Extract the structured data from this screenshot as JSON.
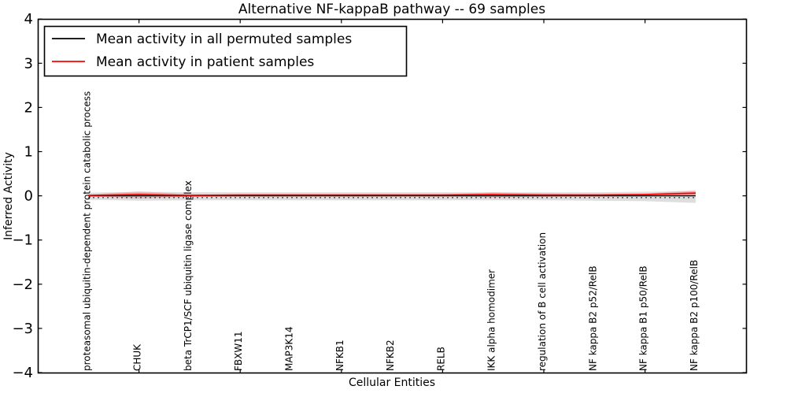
{
  "chart_data": {
    "type": "line",
    "title": "Alternative NF-kappaB pathway -- 69 samples",
    "xlabel": "Cellular Entities",
    "ylabel": "Inferred Activity",
    "ylim": [
      -4,
      4
    ],
    "yticks": [
      4,
      3,
      2,
      1,
      0,
      -1,
      -2,
      -3,
      -4
    ],
    "ytick_labels": [
      "4",
      "3",
      "2",
      "1",
      "0",
      "−1",
      "−2",
      "−3",
      "−4"
    ],
    "grid": false,
    "legend_position": "upper left",
    "categories": [
      "proteasomal ubiquitin-dependent protein catabolic process",
      "CHUK",
      "beta TrCP1/SCF ubiquitin ligase complex",
      "FBXW11",
      "MAP3K14",
      "NFKB1",
      "NFKB2",
      "RELB",
      "IKK alpha homodimer",
      "regulation of B cell activation",
      "NF kappa B2 p52/RelB",
      "NF kappa B1 p50/RelB",
      "NF kappa B2 p100/RelB"
    ],
    "series": [
      {
        "name": "Mean activity in all permuted samples",
        "color": "#000000",
        "style": "solid",
        "values": [
          0,
          0,
          0,
          0,
          0,
          0,
          0,
          0,
          0,
          0,
          0,
          0,
          0
        ]
      },
      {
        "name": "Mean activity in patient samples",
        "color": "#ff0000",
        "style": "solid",
        "values": [
          0.01,
          0.03,
          0.01,
          0.02,
          0.02,
          0.02,
          0.02,
          0.02,
          0.03,
          0.02,
          0.02,
          0.03,
          0.06
        ]
      }
    ],
    "bands": [
      {
        "name": "permuted-samples-spread",
        "color": "#000000",
        "opacity": 0.13,
        "upper": [
          0.07,
          0.09,
          0.08,
          0.08,
          0.08,
          0.08,
          0.08,
          0.08,
          0.08,
          0.08,
          0.08,
          0.09,
          0.1
        ],
        "lower": [
          -0.09,
          -0.11,
          -0.1,
          -0.1,
          -0.1,
          -0.1,
          -0.1,
          -0.1,
          -0.1,
          -0.1,
          -0.11,
          -0.12,
          -0.16
        ]
      },
      {
        "name": "patient-samples-spread",
        "color": "#ff0000",
        "opacity": 0.16,
        "upper": [
          0.03,
          0.1,
          0.04,
          0.03,
          0.03,
          0.03,
          0.03,
          0.03,
          0.08,
          0.05,
          0.04,
          0.05,
          0.13
        ],
        "lower": [
          -0.01,
          -0.06,
          -0.02,
          0.0,
          0.0,
          0.0,
          0.0,
          0.0,
          -0.04,
          -0.02,
          -0.01,
          -0.01,
          0.0
        ]
      }
    ],
    "dotted_reference": {
      "name": "dotted-baseline",
      "color": "#000000",
      "style": "dotted",
      "value": -0.04
    }
  }
}
